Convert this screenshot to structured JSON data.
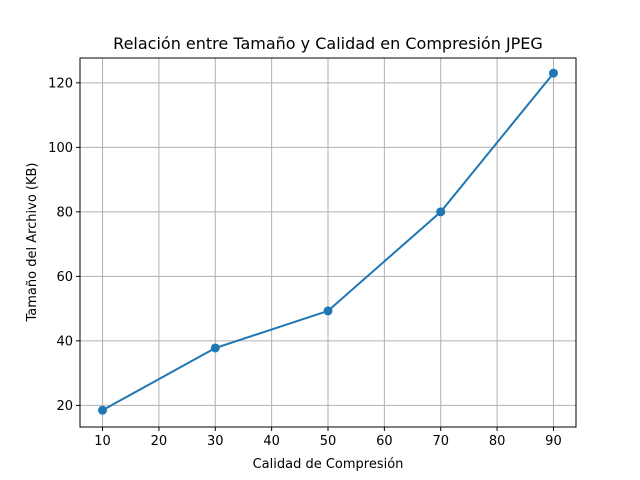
{
  "chart_data": {
    "type": "line",
    "title": "Relación entre Tamaño y Calidad en Compresión JPEG",
    "xlabel": "Calidad de Compresión",
    "ylabel": "Tamaño del Archivo (KB)",
    "x": [
      10,
      30,
      50,
      70,
      90
    ],
    "series": [
      {
        "values": [
          18.5,
          37.8,
          49.3,
          80.0,
          123.0
        ],
        "color": "#1f77b4",
        "marker": "circle"
      }
    ],
    "xlim": [
      6,
      94
    ],
    "ylim": [
      13.3,
      127.7
    ],
    "xticks": [
      10,
      20,
      30,
      40,
      50,
      60,
      70,
      80,
      90
    ],
    "yticks": [
      20,
      40,
      60,
      80,
      100,
      120
    ],
    "grid": true,
    "grid_color": "#b0b0b0"
  }
}
